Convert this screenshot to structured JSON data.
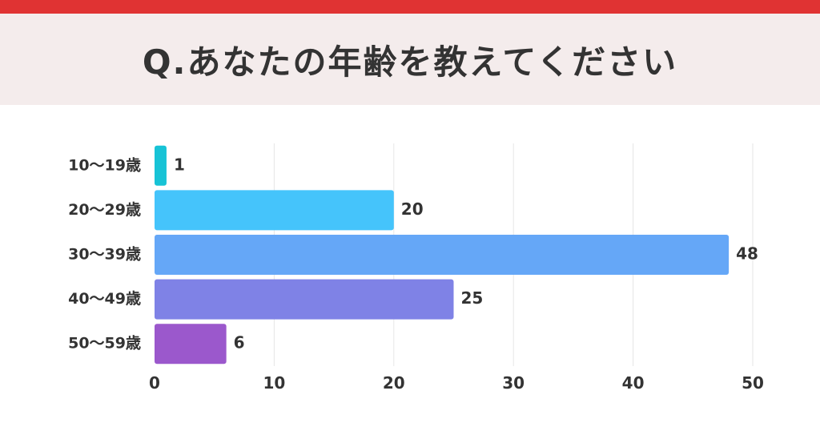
{
  "title": "Q.あなたの年齢を教えてください",
  "colors": {
    "top_bar": "#e03333",
    "header_bg": "#f4ecec",
    "grid": "#e6e6e6"
  },
  "chart_data": {
    "type": "bar",
    "orientation": "horizontal",
    "categories": [
      "10〜19歳",
      "20〜29歳",
      "30〜39歳",
      "40〜49歳",
      "50〜59歳"
    ],
    "values": [
      1,
      20,
      48,
      25,
      6
    ],
    "bar_colors": [
      "#17c3d6",
      "#45c4fb",
      "#65a7f7",
      "#7f82e6",
      "#9b58cc"
    ],
    "xlim": [
      0,
      50
    ],
    "xticks": [
      0,
      10,
      20,
      30,
      40,
      50
    ],
    "grid": true,
    "data_labels": true
  }
}
